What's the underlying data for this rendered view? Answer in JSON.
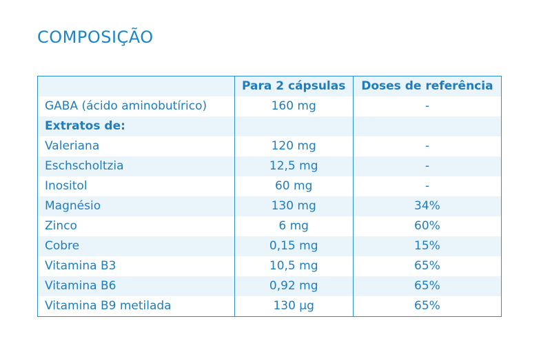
{
  "title": "COMPOSIÇÃO",
  "table": {
    "headers": [
      "",
      "Para 2 cápsulas",
      "Doses de referência"
    ],
    "rows": [
      {
        "name": "GABA (ácido aminobutírico)",
        "amount": "160 mg",
        "reference": "-",
        "bold": false
      },
      {
        "name": "Extratos de:",
        "amount": "",
        "reference": "",
        "bold": true
      },
      {
        "name": "Valeriana",
        "amount": "120 mg",
        "reference": "-",
        "bold": false
      },
      {
        "name": "Eschscholtzia",
        "amount": "12,5 mg",
        "reference": "-",
        "bold": false
      },
      {
        "name": "Inositol",
        "amount": "60 mg",
        "reference": "-",
        "bold": false
      },
      {
        "name": "Magnésio",
        "amount": "130 mg",
        "reference": "34%",
        "bold": false
      },
      {
        "name": "Zinco",
        "amount": "6 mg",
        "reference": "60%",
        "bold": false
      },
      {
        "name": "Cobre",
        "amount": "0,15 mg",
        "reference": "15%",
        "bold": false
      },
      {
        "name": "Vitamina B3",
        "amount": "10,5 mg",
        "reference": "65%",
        "bold": false
      },
      {
        "name": "Vitamina B6",
        "amount": "0,92 mg",
        "reference": "65%",
        "bold": false
      },
      {
        "name": "Vitamina B9 metilada",
        "amount": "130 µg",
        "reference": "65%",
        "bold": false
      }
    ]
  },
  "colors": {
    "accent": "#1a86c8",
    "border": "#2b8fcf",
    "row_shade": "#eaf4fb"
  }
}
